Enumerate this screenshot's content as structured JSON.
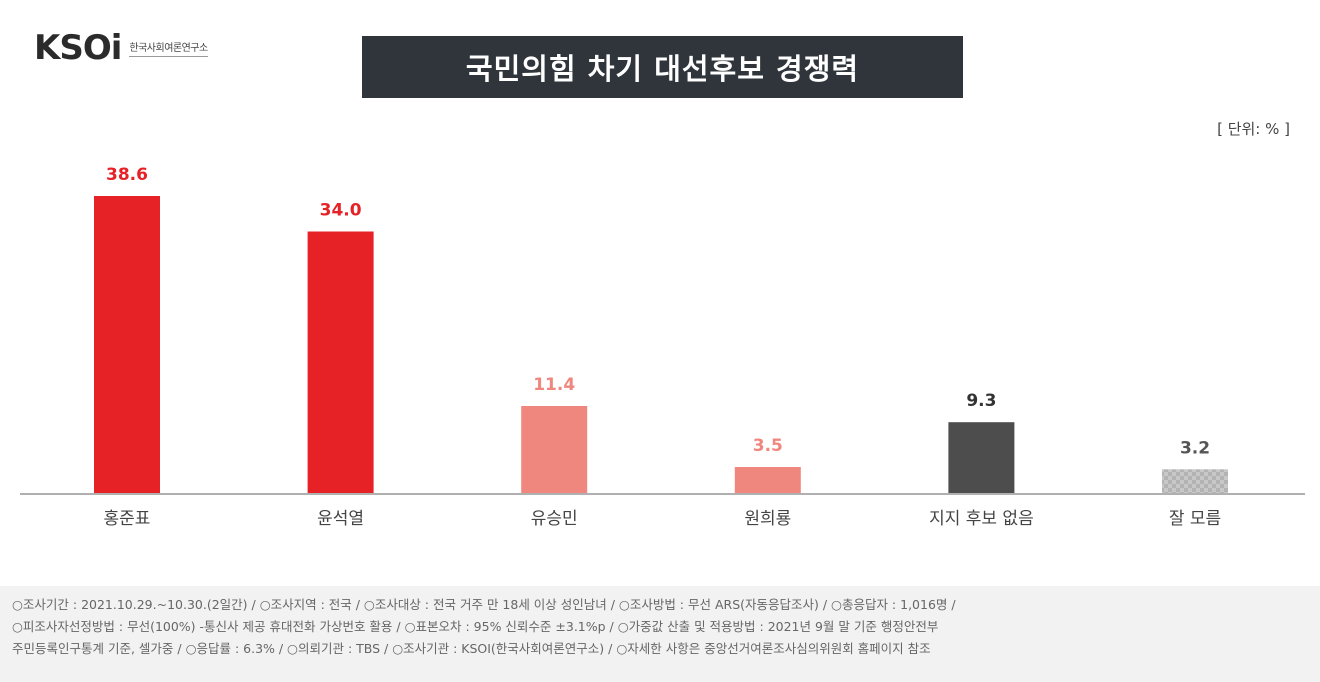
{
  "logo": {
    "mark": "KSOi",
    "subtitle": "한국사회여론연구소"
  },
  "title": "국민의힘 차기 대선후보 경쟁력",
  "unit": "[ 단위: % ]",
  "chart_data": {
    "type": "bar",
    "categories": [
      "홍준표",
      "윤석열",
      "유승민",
      "원희룡",
      "지지 후보 없음",
      "잘 모름"
    ],
    "values": [
      38.6,
      34.0,
      11.4,
      3.5,
      9.3,
      3.2
    ],
    "value_labels": [
      "38.6",
      "34.0",
      "11.4",
      "3.5",
      "9.3",
      "3.2"
    ],
    "colors": [
      "#e62226",
      "#e62226",
      "#f0877f",
      "#f0877f",
      "#4d4d4d",
      "#bfbfbf"
    ],
    "label_colors": [
      "#e62226",
      "#e62226",
      "#f0877f",
      "#f0877f",
      "#333333",
      "#555555"
    ],
    "ylim": [
      0,
      40
    ],
    "grid": false,
    "legend": "none"
  },
  "footer": {
    "lines": [
      "○조사기간 : 2021.10.29.~10.30.(2일간)  / ○조사지역 : 전국 / ○조사대상 : 전국 거주 만 18세 이상 성인남녀 / ○조사방법 : 무선 ARS(자동응답조사) / ○총응답자 : 1,016명 /",
      "○피조사자선정방법 : 무선(100%) -통신사 제공 휴대전화 가상번호 활용 / ○표본오차 : 95% 신뢰수준 ±3.1%p / ○가중값 산출 및 적용방법 : 2021년 9월 말 기준 행정안전부",
      "주민등록인구통계 기준, 셀가중 / ○응답률 : 6.3% / ○의뢰기관 : TBS / ○조사기관 : KSOI(한국사회여론연구소) / ○자세한 사항은 중앙선거여론조사심의위원회 홈페이지 참조"
    ]
  }
}
